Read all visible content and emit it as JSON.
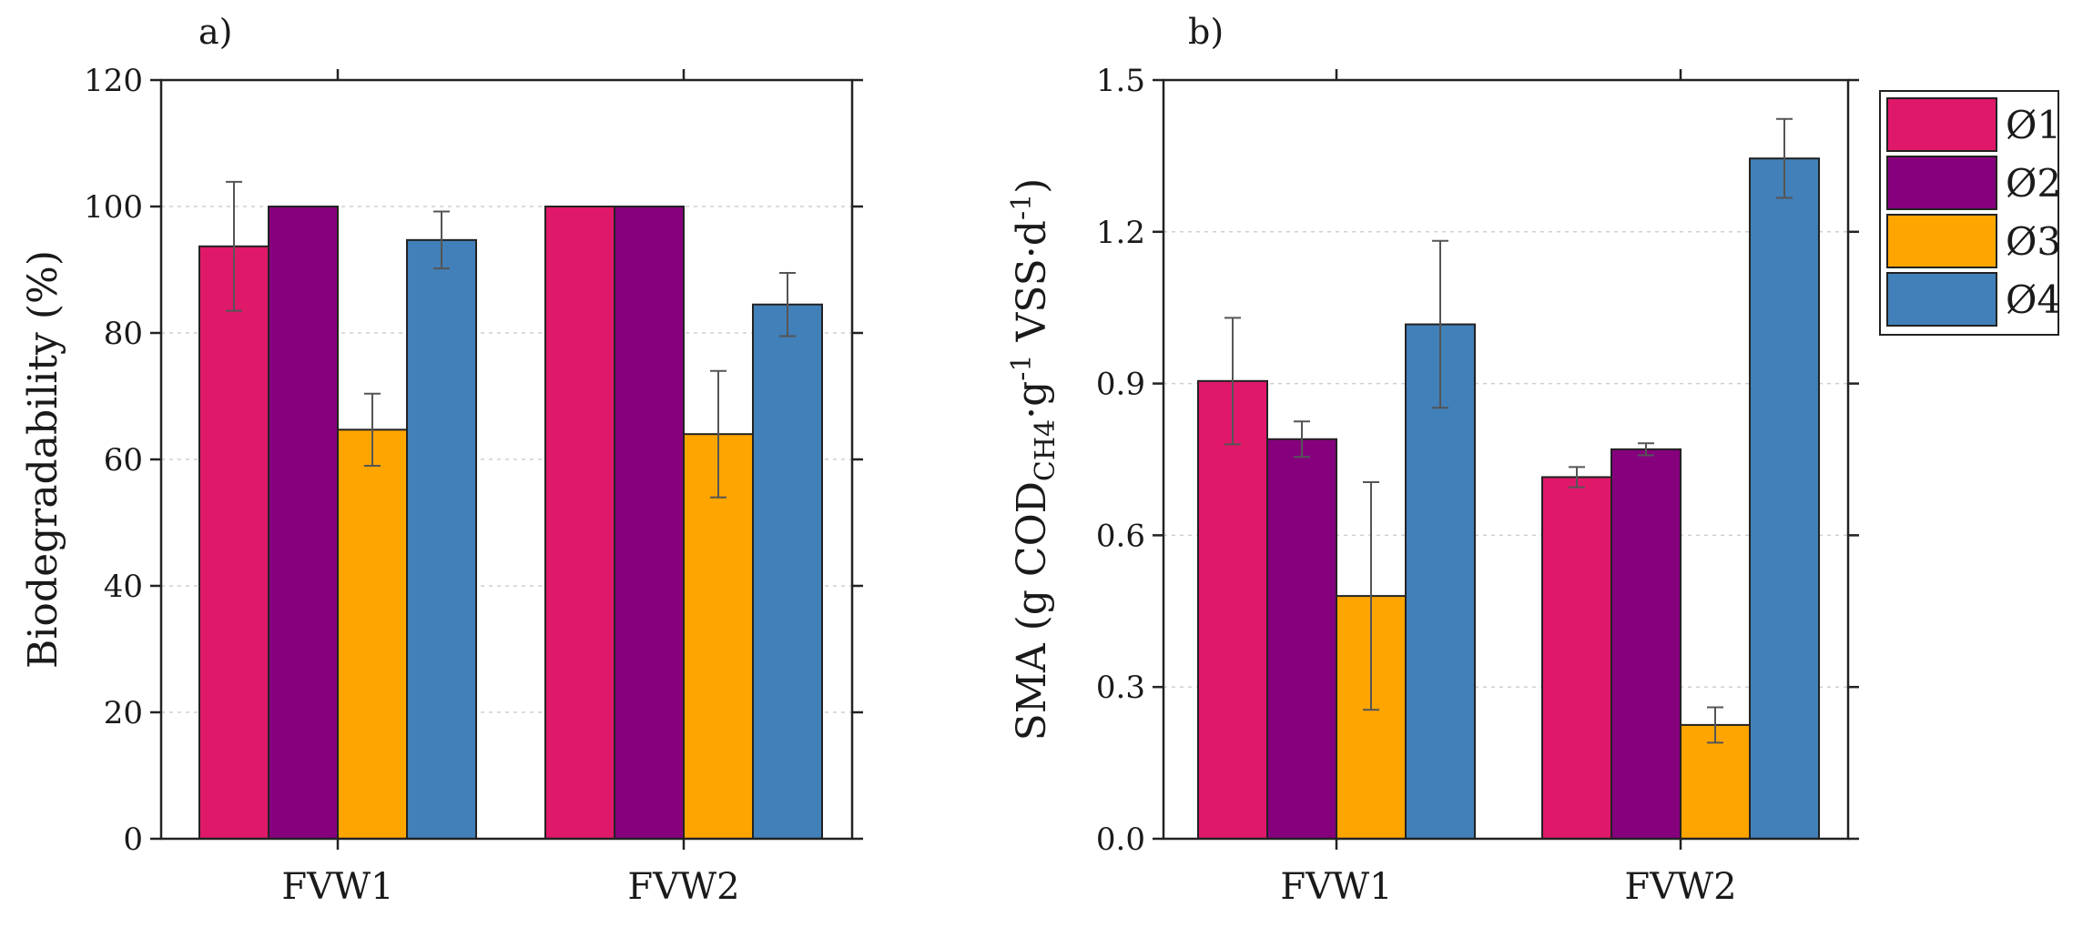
{
  "chart_data": [
    {
      "type": "bar",
      "panel_label": "a)",
      "categories": [
        "FVW1",
        "FVW2"
      ],
      "ylabel": "Biodegradability (%)",
      "ylim": [
        0,
        120
      ],
      "yticks": [
        "0",
        "20",
        "40",
        "60",
        "80",
        "100",
        "120"
      ],
      "grid": true,
      "series": [
        {
          "name": "Ø1",
          "color": "#e0186a",
          "values": [
            93.7,
            100
          ],
          "errors": [
            10.2,
            0
          ]
        },
        {
          "name": "Ø2",
          "color": "#86007e",
          "values": [
            100,
            100
          ],
          "errors": [
            0,
            0
          ]
        },
        {
          "name": "Ø3",
          "color": "#ffa500",
          "values": [
            64.7,
            64.0
          ],
          "errors": [
            5.7,
            10.0
          ]
        },
        {
          "name": "Ø4",
          "color": "#4180b8",
          "values": [
            94.7,
            84.5
          ],
          "errors": [
            4.5,
            5.0
          ]
        }
      ]
    },
    {
      "type": "bar",
      "panel_label": "b)",
      "categories": [
        "FVW1",
        "FVW2"
      ],
      "ylabel_parts": [
        "SMA (g COD",
        "CH4",
        "·g",
        "-1",
        " VSS·d",
        "-1",
        ")"
      ],
      "ylim": [
        0,
        1.5
      ],
      "yticks": [
        "0.0",
        "0.3",
        "0.6",
        "0.9",
        "1.2",
        "1.5"
      ],
      "grid": true,
      "legend_position": "right",
      "series": [
        {
          "name": "Ø1",
          "color": "#e0186a",
          "values": [
            0.905,
            0.715
          ],
          "errors": [
            0.125,
            0.02
          ]
        },
        {
          "name": "Ø2",
          "color": "#86007e",
          "values": [
            0.79,
            0.77
          ],
          "errors": [
            0.035,
            0.012
          ]
        },
        {
          "name": "Ø3",
          "color": "#ffa500",
          "values": [
            0.48,
            0.225
          ],
          "errors": [
            0.225,
            0.035
          ]
        },
        {
          "name": "Ø4",
          "color": "#4180b8",
          "values": [
            1.017,
            1.345
          ],
          "errors": [
            0.165,
            0.078
          ]
        }
      ]
    }
  ]
}
